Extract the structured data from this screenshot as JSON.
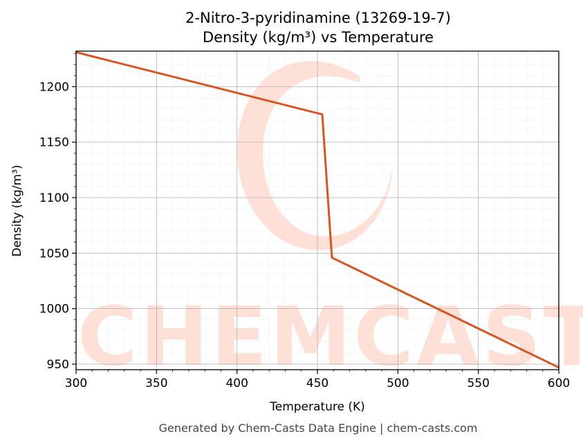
{
  "chart_data": {
    "type": "line",
    "title": "2-Nitro-3-pyridinamine (13269-19-7)",
    "subtitle": "Density (kg/m³) vs Temperature",
    "xlabel": "Temperature (K)",
    "ylabel": "Density (kg/m³)",
    "xlim": [
      300,
      600
    ],
    "ylim": [
      945,
      1232
    ],
    "xticks": [
      300,
      350,
      400,
      450,
      500,
      550,
      600
    ],
    "yticks": [
      950,
      1000,
      1050,
      1100,
      1150,
      1200
    ],
    "grid": true,
    "series": [
      {
        "color": "#d95420",
        "points": [
          {
            "x": 300,
            "y": 1231
          },
          {
            "x": 453,
            "y": 1175
          },
          {
            "x": 459,
            "y": 1046
          },
          {
            "x": 600,
            "y": 947
          }
        ]
      }
    ]
  },
  "watermark": {
    "text": "CHEMCASTS",
    "color": "#ffe0d6"
  },
  "footer": "Generated by Chem-Casts Data Engine | chem-casts.com"
}
